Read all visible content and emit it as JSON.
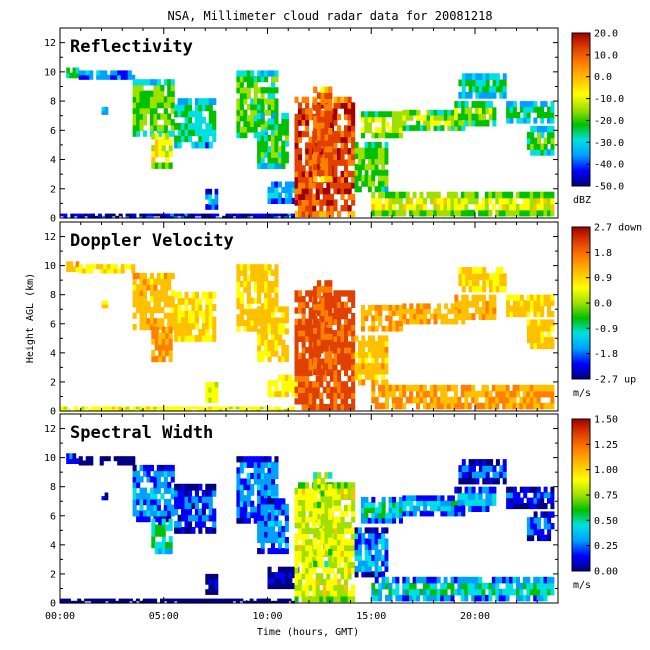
{
  "figure_title": "NSA, Millimeter cloud radar data for 20081218",
  "chart_data": [
    {
      "type": "heatmap",
      "title": "Reflectivity",
      "xlabel": "Time (hours, GMT)",
      "ylabel": "Height AGL (km)",
      "xlim": [
        0,
        24
      ],
      "ylim": [
        0,
        13
      ],
      "x_ticks": [
        "00:00",
        "05:00",
        "10:00",
        "15:00",
        "20:00"
      ],
      "y_ticks": [
        "0",
        "2",
        "4",
        "6",
        "8",
        "10",
        "12"
      ],
      "colorbar": {
        "unit": "dBZ",
        "range": [
          -50,
          20
        ],
        "tick_labels": [
          "20.0",
          "10.0",
          "0.0",
          "-10.0",
          "-20.0",
          "-30.0",
          "-40.0",
          "-50.0"
        ],
        "colors": [
          "#000080",
          "#0000ff",
          "#00a0ff",
          "#00e0e0",
          "#00c000",
          "#a0e000",
          "#ffff00",
          "#ffc000",
          "#ff8000",
          "#e04000",
          "#a00000"
        ]
      }
    },
    {
      "type": "heatmap",
      "title": "Doppler Velocity",
      "xlabel": "Time (hours, GMT)",
      "ylabel": "Height AGL (km)",
      "xlim": [
        0,
        24
      ],
      "ylim": [
        0,
        13
      ],
      "x_ticks": [
        "00:00",
        "05:00",
        "10:00",
        "15:00",
        "20:00"
      ],
      "y_ticks": [
        "0",
        "2",
        "4",
        "6",
        "8",
        "10",
        "12"
      ],
      "colorbar": {
        "unit": "m/s",
        "range": [
          -2.7,
          2.7
        ],
        "tick_labels": [
          "2.7 down",
          "1.8",
          "0.9",
          "0.0",
          "-0.9",
          "-1.8",
          "-2.7 up"
        ],
        "colors": [
          "#000080",
          "#0000ff",
          "#00a0ff",
          "#00e0e0",
          "#00c000",
          "#a0e000",
          "#ffff00",
          "#ffc000",
          "#ff8000",
          "#e04000",
          "#a00000"
        ]
      }
    },
    {
      "type": "heatmap",
      "title": "Spectral Width",
      "xlabel": "Time (hours, GMT)",
      "ylabel": "Height AGL (km)",
      "xlim": [
        0,
        24
      ],
      "ylim": [
        0,
        13
      ],
      "x_ticks": [
        "00:00",
        "05:00",
        "10:00",
        "15:00",
        "20:00"
      ],
      "y_ticks": [
        "0",
        "2",
        "4",
        "6",
        "8",
        "10",
        "12"
      ],
      "colorbar": {
        "unit": "m/s",
        "range": [
          0,
          1.5
        ],
        "tick_labels": [
          "1.50",
          "1.25",
          "1.00",
          "0.75",
          "0.50",
          "0.25",
          "0.00"
        ],
        "colors": [
          "#000080",
          "#0000ff",
          "#00a0ff",
          "#00e0e0",
          "#00c000",
          "#a0e000",
          "#ffff00",
          "#ffc000",
          "#ff8000",
          "#e04000",
          "#a00000"
        ]
      }
    }
  ]
}
